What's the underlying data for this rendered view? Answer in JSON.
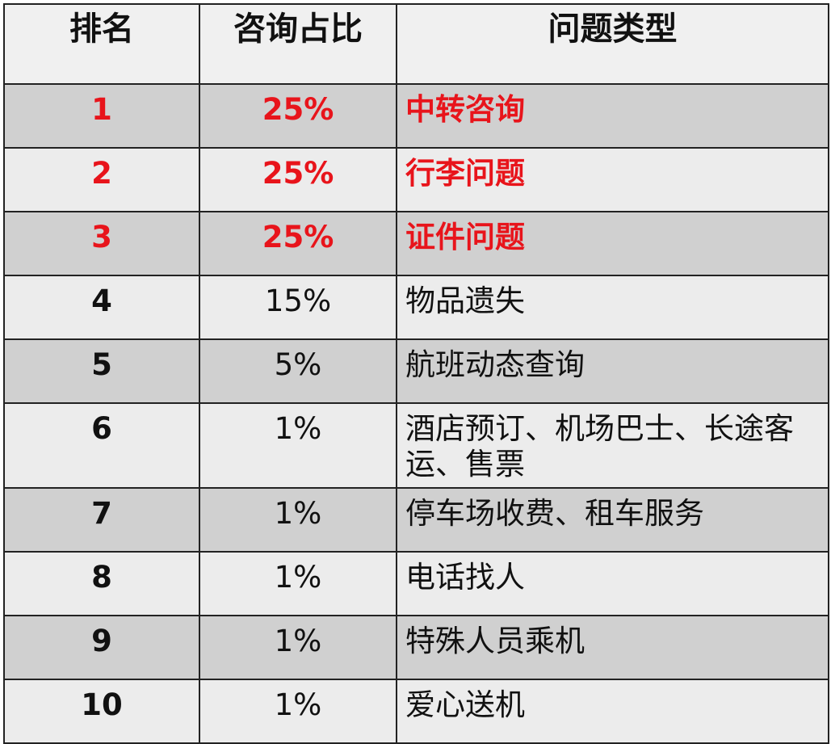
{
  "table": {
    "headers": [
      "排名",
      "咨询占比",
      "问题类型"
    ],
    "rows": [
      {
        "rank": "1",
        "share": "25%",
        "type": "中转咨询",
        "highlight": true
      },
      {
        "rank": "2",
        "share": "25%",
        "type": "行李问题",
        "highlight": true
      },
      {
        "rank": "3",
        "share": "25%",
        "type": "证件问题",
        "highlight": true
      },
      {
        "rank": "4",
        "share": "15%",
        "type": "物品遗失",
        "highlight": false
      },
      {
        "rank": "5",
        "share": "5%",
        "type": "航班动态查询",
        "highlight": false
      },
      {
        "rank": "6",
        "share": "1%",
        "type": "酒店预订、机场巴士、长途客运、售票",
        "highlight": false
      },
      {
        "rank": "7",
        "share": "1%",
        "type": "停车场收费、租车服务",
        "highlight": false
      },
      {
        "rank": "8",
        "share": "1%",
        "type": "电话找人",
        "highlight": false
      },
      {
        "rank": "9",
        "share": "1%",
        "type": "特殊人员乘机",
        "highlight": false
      },
      {
        "rank": "10",
        "share": "1%",
        "type": "爱心送机",
        "highlight": false
      }
    ],
    "highlight_color": "#e8141b"
  }
}
